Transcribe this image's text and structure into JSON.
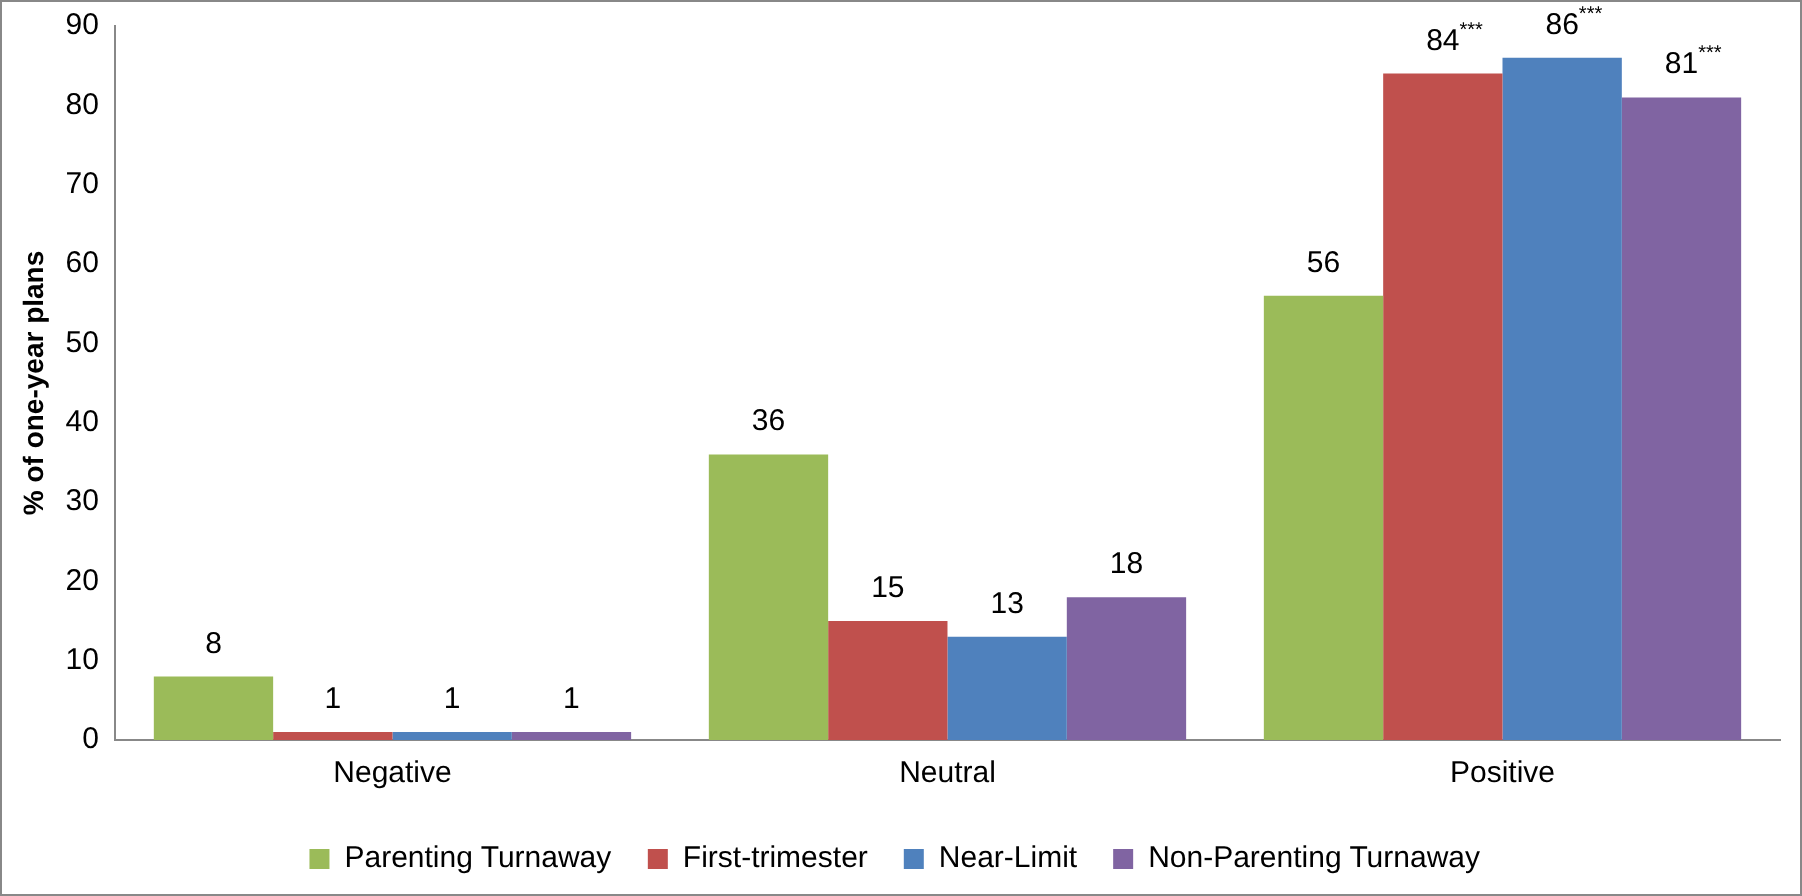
{
  "chart_data": {
    "type": "bar",
    "ylabel": "% of one-year plans",
    "categories": [
      "Negative",
      "Neutral",
      "Positive"
    ],
    "series": [
      {
        "name": "Parenting Turnaway",
        "color": "#9bbb59",
        "values": [
          8,
          36,
          56
        ],
        "value_labels": [
          "8",
          "36",
          "56"
        ]
      },
      {
        "name": "First-trimester",
        "color": "#c0504d",
        "values": [
          1,
          15,
          84
        ],
        "value_labels": [
          "1",
          "15",
          "84$^{***}$"
        ]
      },
      {
        "name": "Near-Limit",
        "color": "#4f81bd",
        "values": [
          1,
          13,
          86
        ],
        "value_labels": [
          "1",
          "13",
          "86$^{***}$"
        ]
      },
      {
        "name": "Non-Parenting Turnaway",
        "color": "#8064a2",
        "values": [
          1,
          18,
          81
        ],
        "value_labels": [
          "1",
          "18",
          "81$^{***}$"
        ]
      }
    ],
    "ylim": [
      0,
      90
    ],
    "yticks": [
      0,
      10,
      20,
      30,
      40,
      50,
      60,
      70,
      80,
      90
    ],
    "grid": false,
    "legend": "bottom"
  }
}
